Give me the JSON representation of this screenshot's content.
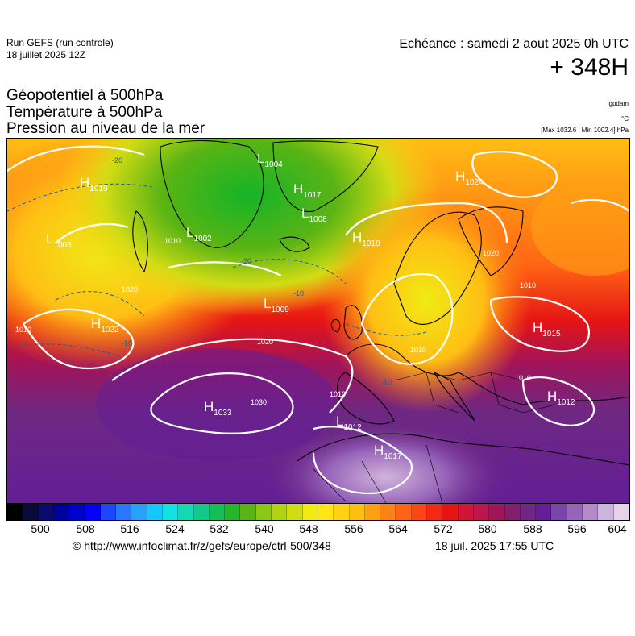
{
  "header": {
    "run": "Run GEFS (run controle)",
    "run_date": "18 juillet 2025 12Z",
    "echeance": "Echéance : samedi 2 aout 2025 0h UTC",
    "horizon": "+ 348H"
  },
  "parameters": {
    "line1": "Géopotentiel à 500hPa",
    "line2": "Température à 500hPa",
    "line3": "Pression au niveau de la mer"
  },
  "units": {
    "geopotential": "gpdam",
    "temperature": "°C",
    "pressure_range": "[Max 1032.6 | Min 1002.4] hPa"
  },
  "colors": {
    "scale": [
      "#000000",
      "#0a0a3a",
      "#0a0a6e",
      "#0000a0",
      "#0000cd",
      "#0000ff",
      "#1e46ff",
      "#2878ff",
      "#28a0ff",
      "#14c8ff",
      "#14e1e1",
      "#14d7b4",
      "#14c88c",
      "#14be5a",
      "#28b428",
      "#5ab414",
      "#8cc814",
      "#b4d214",
      "#d2dc14",
      "#f0eb14",
      "#ffe614",
      "#ffd214",
      "#ffbe14",
      "#ffa014",
      "#ff8214",
      "#ff6414",
      "#ff4614",
      "#f52814",
      "#e61414",
      "#d2143c",
      "#be1450",
      "#a0145a",
      "#821e6e",
      "#6e2882",
      "#641e96",
      "#7846aa",
      "#9664b9",
      "#b48cc8",
      "#cdb4dc",
      "#e6d2eb"
    ],
    "background_low": "#6e2882",
    "background_high": "#f0eb14"
  },
  "colorbar": {
    "ticks": [
      "500",
      "508",
      "516",
      "524",
      "532",
      "540",
      "548",
      "556",
      "564",
      "572",
      "580",
      "588",
      "596",
      "604"
    ]
  },
  "map_labels": {
    "systems": [
      {
        "type": "H",
        "value": "1019"
      },
      {
        "type": "L",
        "value": "1004"
      },
      {
        "type": "H",
        "value": "1017"
      },
      {
        "type": "L",
        "value": "1008"
      },
      {
        "type": "L",
        "value": "1002"
      },
      {
        "type": "H",
        "value": "1024"
      },
      {
        "type": "L",
        "value": "1003"
      },
      {
        "type": "H",
        "value": "1018"
      },
      {
        "type": "L",
        "value": "1009"
      },
      {
        "type": "H",
        "value": "1022"
      },
      {
        "type": "H",
        "value": "1015"
      },
      {
        "type": "H",
        "value": "1033"
      },
      {
        "type": "H",
        "value": "1012"
      },
      {
        "type": "L",
        "value": "1012"
      },
      {
        "type": "H",
        "value": "1017"
      }
    ],
    "isobars": [
      "1010",
      "1020",
      "1030",
      "1010",
      "1010",
      "1010",
      "1010",
      "1020",
      "1020",
      "1010"
    ],
    "isotherms": [
      "-20",
      "-20",
      "-10",
      "-10",
      "-10"
    ]
  },
  "footer": {
    "copyright": "© http://www.infoclimat.fr/z/gefs/europe/ctrl-500/348",
    "generated": "18 juil. 2025 17:55 UTC"
  }
}
